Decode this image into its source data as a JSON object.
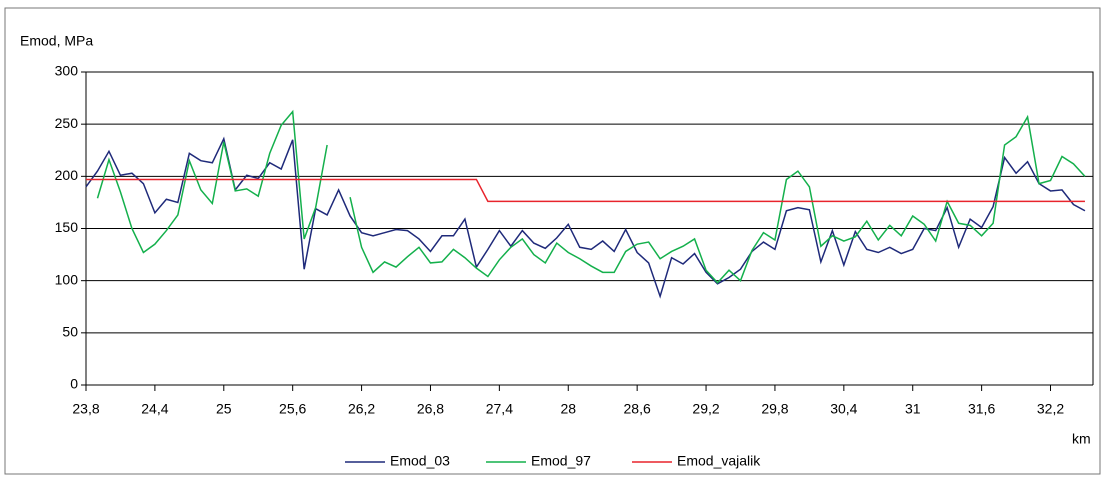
{
  "chart_data": {
    "type": "line",
    "y_label": "Emod, MPa",
    "x_label": "km",
    "x": [
      23.8,
      23.9,
      24.0,
      24.1,
      24.2,
      24.3,
      24.4,
      24.5,
      24.6,
      24.7,
      24.8,
      24.9,
      25.0,
      25.1,
      25.2,
      25.3,
      25.4,
      25.5,
      25.6,
      25.7,
      25.8,
      25.9,
      26.0,
      26.1,
      26.2,
      26.3,
      26.4,
      26.5,
      26.6,
      26.7,
      26.8,
      26.9,
      27.0,
      27.1,
      27.2,
      27.3,
      27.4,
      27.5,
      27.6,
      27.7,
      27.8,
      27.9,
      28.0,
      28.1,
      28.2,
      28.3,
      28.4,
      28.5,
      28.6,
      28.7,
      28.8,
      28.9,
      29.0,
      29.1,
      29.2,
      29.3,
      29.4,
      29.5,
      29.6,
      29.7,
      29.8,
      29.9,
      30.0,
      30.1,
      30.2,
      30.3,
      30.4,
      30.5,
      30.6,
      30.7,
      30.8,
      30.9,
      31.0,
      31.1,
      31.2,
      31.3,
      31.4,
      31.5,
      31.6,
      31.7,
      31.8,
      31.9,
      32.0,
      32.1,
      32.2,
      32.3,
      32.4,
      32.5
    ],
    "series": [
      {
        "name": "Emod_03",
        "color": "#1f2a7a",
        "values": [
          190,
          205,
          224,
          201,
          203,
          193,
          165,
          178,
          175,
          222,
          215,
          213,
          236,
          187,
          201,
          198,
          213,
          207,
          235,
          111,
          169,
          163,
          187,
          162,
          146,
          143,
          146,
          149,
          148,
          140,
          128,
          143,
          143,
          159,
          113,
          130,
          148,
          133,
          148,
          136,
          131,
          141,
          154,
          132,
          130,
          138,
          128,
          149,
          127,
          117,
          85,
          122,
          116,
          126,
          108,
          97,
          103,
          111,
          128,
          137,
          130,
          167,
          170,
          168,
          118,
          148,
          115,
          147,
          130,
          127,
          132,
          126,
          130,
          150,
          148,
          170,
          132,
          159,
          151,
          171,
          218,
          203,
          214,
          193,
          186,
          187,
          173,
          167
        ]
      },
      {
        "name": "Emod_97",
        "color": "#14b04c",
        "values": [
          null,
          179,
          216,
          185,
          150,
          127,
          135,
          148,
          163,
          215,
          187,
          174,
          233,
          186,
          188,
          181,
          222,
          249,
          262,
          140,
          170,
          230,
          null,
          180,
          132,
          108,
          118,
          113,
          123,
          132,
          117,
          118,
          130,
          122,
          112,
          104,
          120,
          132,
          140,
          125,
          117,
          136,
          127,
          121,
          114,
          108,
          108,
          128,
          135,
          137,
          121,
          128,
          133,
          140,
          110,
          98,
          110,
          100,
          129,
          146,
          139,
          197,
          205,
          190,
          133,
          143,
          138,
          142,
          157,
          139,
          153,
          143,
          162,
          154,
          138,
          176,
          155,
          153,
          143,
          155,
          230,
          238,
          257,
          193,
          196,
          219,
          212,
          200
        ]
      },
      {
        "name": "Emod_vajalik",
        "color": "#e8242c",
        "values": [
          197,
          197,
          197,
          197,
          197,
          197,
          197,
          197,
          197,
          197,
          197,
          197,
          197,
          197,
          197,
          197,
          197,
          197,
          197,
          197,
          197,
          197,
          197,
          197,
          197,
          197,
          197,
          197,
          197,
          197,
          197,
          197,
          197,
          197,
          197,
          176,
          176,
          176,
          176,
          176,
          176,
          176,
          176,
          176,
          176,
          176,
          176,
          176,
          176,
          176,
          176,
          176,
          176,
          176,
          176,
          176,
          176,
          176,
          176,
          176,
          176,
          176,
          176,
          176,
          176,
          176,
          176,
          176,
          176,
          176,
          176,
          176,
          176,
          176,
          176,
          176,
          176,
          176,
          176,
          176,
          176,
          176,
          176,
          176,
          176,
          176,
          176,
          176
        ]
      }
    ],
    "xlim": [
      23.8,
      32.57
    ],
    "xticks": [
      {
        "value": 23.8,
        "label": "23,8"
      },
      {
        "value": 24.4,
        "label": "24,4"
      },
      25,
      {
        "value": 25.6,
        "label": "25,6"
      },
      {
        "value": 26.2,
        "label": "26,2"
      },
      {
        "value": 26.8,
        "label": "26,8"
      },
      {
        "value": 27.4,
        "label": "27,4"
      },
      28,
      {
        "value": 28.6,
        "label": "28,6"
      },
      {
        "value": 29.2,
        "label": "29,2"
      },
      {
        "value": 29.8,
        "label": "29,8"
      },
      {
        "value": 30.4,
        "label": "30,4"
      },
      31,
      {
        "value": 31.6,
        "label": "31,6"
      },
      {
        "value": 32.2,
        "label": "32,2"
      }
    ],
    "ylim": [
      0,
      300
    ],
    "yticks": [
      0,
      50,
      100,
      150,
      200,
      250,
      300
    ],
    "grid": true,
    "legend": "bottom"
  }
}
